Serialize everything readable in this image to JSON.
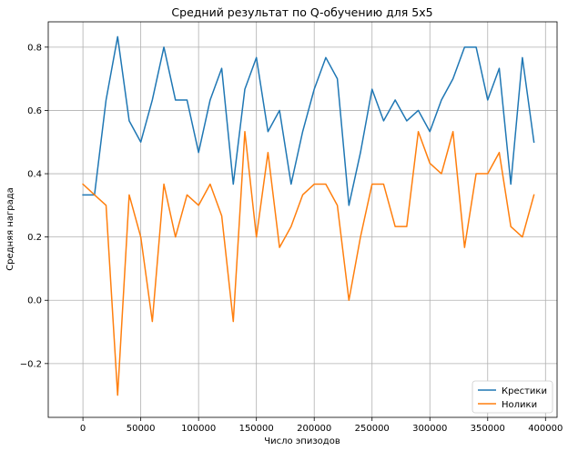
{
  "chart_data": {
    "type": "line",
    "title": "Средний результат по Q-обучению для 5x5",
    "xlabel": "Число эпизодов",
    "ylabel": "Средняя награда",
    "xlim": [
      -30000,
      410000
    ],
    "ylim": [
      -0.37,
      0.88
    ],
    "grid": true,
    "legend_position": "bottom-right",
    "xticks": [
      0,
      50000,
      100000,
      150000,
      200000,
      250000,
      300000,
      350000,
      400000
    ],
    "xtick_labels": [
      "0",
      "50000",
      "100000",
      "150000",
      "200000",
      "250000",
      "300000",
      "350000",
      "400000"
    ],
    "yticks": [
      -0.2,
      0.0,
      0.2,
      0.4,
      0.6,
      0.8
    ],
    "ytick_labels": [
      "−0.2",
      "0.0",
      "0.2",
      "0.4",
      "0.6",
      "0.8"
    ],
    "x": [
      0,
      10000,
      20000,
      30000,
      40000,
      50000,
      60000,
      70000,
      80000,
      90000,
      100000,
      110000,
      120000,
      130000,
      140000,
      150000,
      160000,
      170000,
      180000,
      190000,
      200000,
      210000,
      220000,
      230000,
      240000,
      250000,
      260000,
      270000,
      280000,
      290000,
      300000,
      310000,
      320000,
      330000,
      340000,
      350000,
      360000,
      370000,
      380000,
      390000
    ],
    "series": [
      {
        "name": "Крестики",
        "color": "#1f77b4",
        "values": [
          0.333,
          0.333,
          0.633,
          0.833,
          0.567,
          0.5,
          0.633,
          0.8,
          0.633,
          0.633,
          0.467,
          0.633,
          0.733,
          0.367,
          0.667,
          0.767,
          0.533,
          0.6,
          0.367,
          0.533,
          0.667,
          0.767,
          0.7,
          0.3,
          0.467,
          0.667,
          0.567,
          0.633,
          0.567,
          0.6,
          0.533,
          0.633,
          0.7,
          0.8,
          0.8,
          0.633,
          0.733,
          0.367,
          0.767,
          0.5
        ]
      },
      {
        "name": "Нолики",
        "color": "#ff7f0e",
        "values": [
          0.367,
          0.333,
          0.3,
          -0.3,
          0.333,
          0.2,
          -0.067,
          0.367,
          0.2,
          0.333,
          0.3,
          0.367,
          0.267,
          -0.067,
          0.533,
          0.2,
          0.467,
          0.167,
          0.233,
          0.333,
          0.367,
          0.367,
          0.3,
          0.0,
          0.2,
          0.367,
          0.367,
          0.233,
          0.233,
          0.533,
          0.433,
          0.4,
          0.533,
          0.167,
          0.4,
          0.4,
          0.467,
          0.233,
          0.2,
          0.333
        ]
      }
    ]
  }
}
